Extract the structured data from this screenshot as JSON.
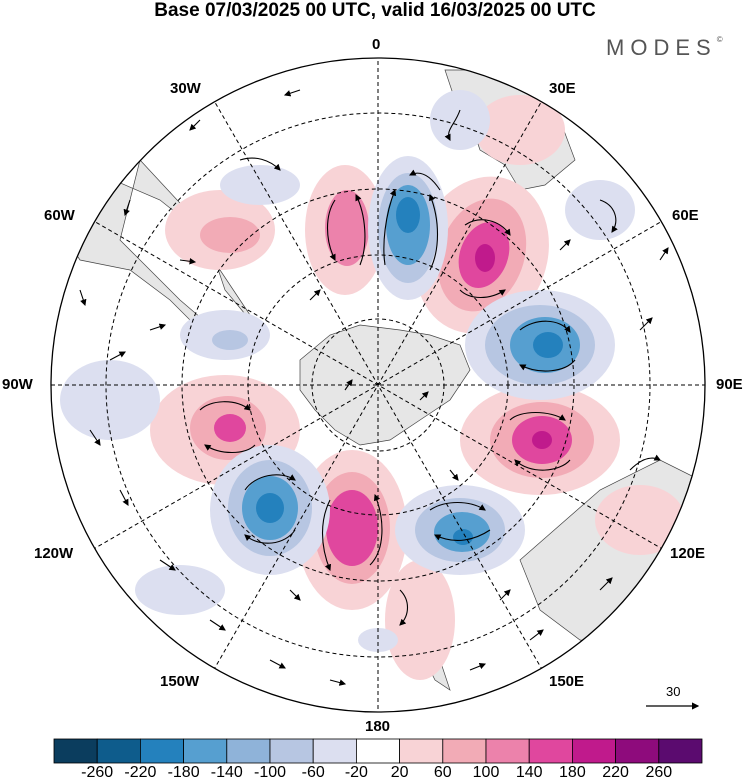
{
  "title": "Base 07/03/2025 00 UTC, valid 16/03/2025 00 UTC",
  "brand": "MODES",
  "brand_mark": "©",
  "longitude_labels": {
    "lon0": "0",
    "lon30e": "30E",
    "lon60e": "60E",
    "lon90e": "90E",
    "lon120e": "120E",
    "lon150e": "150E",
    "lon180": "180",
    "lon150w": "150W",
    "lon120w": "120W",
    "lon90w": "90W",
    "lon60w": "60W",
    "lon30w": "30W"
  },
  "reference_vector": {
    "value": "30"
  },
  "colorbar": {
    "colors": [
      "#0b3d5e",
      "#0e5c8c",
      "#2481bd",
      "#569fd0",
      "#8fb3d9",
      "#b7c6e2",
      "#dcdff0",
      "#ffffff",
      "#f8d3d6",
      "#f2abb6",
      "#ec82ab",
      "#e0479e",
      "#c01a8c",
      "#8e0b7c",
      "#5b0b6f"
    ],
    "ticks": [
      "-260",
      "-220",
      "-180",
      "-140",
      "-100",
      "-60",
      "-20",
      "20",
      "60",
      "100",
      "140",
      "180",
      "220",
      "260"
    ]
  },
  "anomaly_centers": [
    {
      "label": "pos-30w",
      "lon": -30,
      "lat": -55,
      "value": 80
    },
    {
      "label": "pos-5w",
      "lon": -5,
      "lat": -52,
      "value": 140
    },
    {
      "label": "neg-15e",
      "lon": 15,
      "lat": -50,
      "value": -180
    },
    {
      "label": "pos-45e",
      "lon": 45,
      "lat": -50,
      "value": 200
    },
    {
      "label": "neg-80e",
      "lon": 80,
      "lat": -52,
      "value": -200
    },
    {
      "label": "pos-110e",
      "lon": 110,
      "lat": -52,
      "value": 180
    },
    {
      "label": "neg-150e",
      "lon": 148,
      "lat": -50,
      "value": -160
    },
    {
      "label": "pos-185",
      "lon": -175,
      "lat": -50,
      "value": 160
    },
    {
      "label": "neg-145w",
      "lon": -148,
      "lat": -47,
      "value": -200
    },
    {
      "label": "pos-110w",
      "lon": -112,
      "lat": -53,
      "value": 150
    },
    {
      "label": "neg-70w",
      "lon": -70,
      "lat": -62,
      "value": -80
    }
  ]
}
